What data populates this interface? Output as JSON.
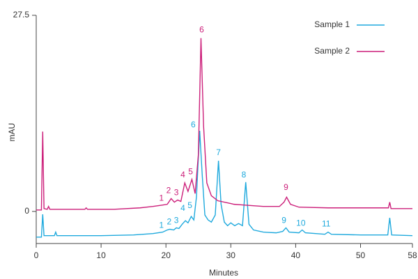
{
  "chart_data": {
    "type": "line",
    "xlabel": "Minutes",
    "ylabel": "mAU",
    "xlim": [
      0,
      58
    ],
    "xticks": [
      0,
      10,
      20,
      30,
      40,
      50,
      58
    ],
    "ylim": [
      -4.5,
      27.5
    ],
    "yticks": [
      0,
      27.5
    ],
    "legend": "top-right",
    "series": [
      {
        "name": "Sample 1",
        "color": "#1ea9dd",
        "x": [
          0,
          0.8,
          1.0,
          1.2,
          2.8,
          3.0,
          3.2,
          10,
          15,
          18,
          19.5,
          20.2,
          20.6,
          21.2,
          21.6,
          22.0,
          22.5,
          23.0,
          23.4,
          23.9,
          24.3,
          24.7,
          25.2,
          25.6,
          26.0,
          26.5,
          27.0,
          27.6,
          28.1,
          28.5,
          29.0,
          29.5,
          30.0,
          30.6,
          31.2,
          31.8,
          32.3,
          32.8,
          33.5,
          35,
          37,
          38.0,
          38.5,
          39.0,
          40.5,
          41.0,
          41.5,
          44.5,
          45.0,
          45.5,
          50,
          54.2,
          54.5,
          54.8,
          58
        ],
        "values": [
          -3.6,
          -3.6,
          -0.4,
          -3.4,
          -3.4,
          -2.9,
          -3.4,
          -3.4,
          -3.3,
          -3.1,
          -2.9,
          -2.6,
          -2.5,
          -2.6,
          -2.3,
          -2.4,
          -1.8,
          -1.3,
          -1.6,
          -0.7,
          -1.2,
          2.0,
          11.3,
          5.0,
          -0.5,
          -1.2,
          -1.5,
          -0.5,
          7.1,
          1.0,
          -1.5,
          -2.0,
          -1.6,
          -2.0,
          -1.7,
          -2.0,
          4.1,
          -1.8,
          -2.6,
          -2.9,
          -3.0,
          -2.8,
          -2.3,
          -2.9,
          -3.0,
          -2.6,
          -3.0,
          -3.2,
          -2.9,
          -3.2,
          -3.3,
          -3.3,
          -0.9,
          -3.3,
          -3.4
        ],
        "peak_labels": [
          {
            "text": "1",
            "x": 19.3,
            "y": -2.0
          },
          {
            "text": "2",
            "x": 20.5,
            "y": -1.5
          },
          {
            "text": "3",
            "x": 21.6,
            "y": -1.3
          },
          {
            "text": "4",
            "x": 22.6,
            "y": 0.4
          },
          {
            "text": "5",
            "x": 23.7,
            "y": 0.8
          },
          {
            "text": "6",
            "x": 24.2,
            "y": 12.1
          },
          {
            "text": "7",
            "x": 28.1,
            "y": 8.2
          },
          {
            "text": "8",
            "x": 32.0,
            "y": 5.1
          },
          {
            "text": "9",
            "x": 38.2,
            "y": -1.3
          },
          {
            "text": "10",
            "x": 40.8,
            "y": -1.7
          },
          {
            "text": "11",
            "x": 44.7,
            "y": -1.8
          }
        ]
      },
      {
        "name": "Sample 2",
        "color": "#cc1f7a",
        "x": [
          0,
          0.8,
          1.0,
          1.2,
          1.7,
          1.9,
          2.1,
          7.5,
          7.7,
          7.9,
          12,
          16,
          18,
          19.5,
          20.2,
          20.8,
          21.3,
          21.8,
          22.3,
          22.9,
          23.4,
          24.0,
          24.5,
          25.0,
          25.4,
          25.8,
          26.3,
          27.0,
          28.0,
          30.0,
          30.5,
          32,
          35,
          37.5,
          38.2,
          38.6,
          39.2,
          40.5,
          45,
          47.5,
          50,
          54.3,
          54.5,
          54.7,
          58
        ],
        "values": [
          0.2,
          0.2,
          11.2,
          0.4,
          0.3,
          0.7,
          0.3,
          0.3,
          0.5,
          0.3,
          0.3,
          0.5,
          0.7,
          0.9,
          1.0,
          1.8,
          1.3,
          1.6,
          1.4,
          4.0,
          2.8,
          4.5,
          2.5,
          8.0,
          24.3,
          12.0,
          4.0,
          2.2,
          1.5,
          1.1,
          1.0,
          0.9,
          0.7,
          0.7,
          1.3,
          2.0,
          1.0,
          0.6,
          0.5,
          0.5,
          0.5,
          0.5,
          1.3,
          0.4,
          0.4
        ],
        "peak_labels": [
          {
            "text": "1",
            "x": 19.3,
            "y": 1.8
          },
          {
            "text": "2",
            "x": 20.4,
            "y": 2.9
          },
          {
            "text": "3",
            "x": 21.6,
            "y": 2.6
          },
          {
            "text": "4",
            "x": 22.6,
            "y": 5.1
          },
          {
            "text": "5",
            "x": 23.8,
            "y": 5.5
          },
          {
            "text": "6",
            "x": 25.5,
            "y": 25.4
          },
          {
            "text": "9",
            "x": 38.5,
            "y": 3.3
          }
        ]
      }
    ]
  }
}
